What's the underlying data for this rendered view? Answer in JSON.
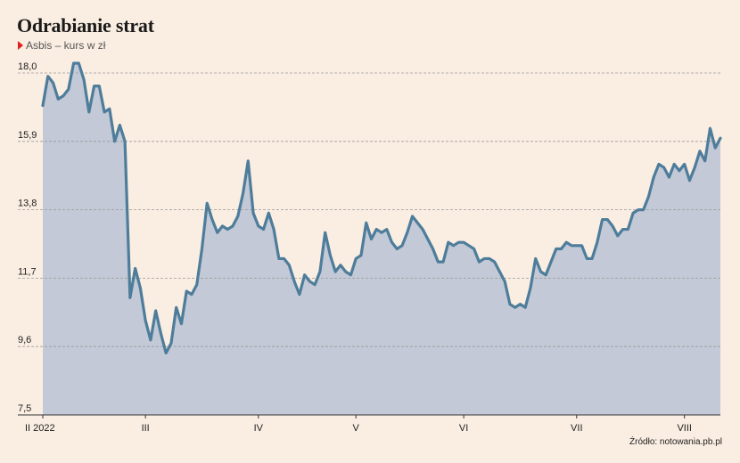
{
  "header": {
    "title": "Odrabianie strat",
    "subtitle": "Asbis – kurs w zł"
  },
  "footer": {
    "source": "Źródło: notowania.pb.pl"
  },
  "colors": {
    "background": "#faeee2",
    "line": "#4e7d9b",
    "area": "#c3c9d6",
    "grid": "#9a9a9a",
    "marker": "#e02020"
  },
  "chart_data": {
    "type": "area",
    "title": "Odrabianie strat",
    "subtitle": "Asbis – kurs w zł",
    "xlabel": "",
    "ylabel": "",
    "ylim": [
      7.5,
      18.0
    ],
    "yticks": [
      7.5,
      9.6,
      11.7,
      13.8,
      15.9,
      18.0
    ],
    "ytick_labels": [
      "7,5",
      "9,6",
      "11,7",
      "13,8",
      "15,9",
      "18,0"
    ],
    "x_tick_labels": [
      {
        "label": "II 2022",
        "index": 0
      },
      {
        "label": "III",
        "index": 20
      },
      {
        "label": "IV",
        "index": 42
      },
      {
        "label": "V",
        "index": 61
      },
      {
        "label": "VI",
        "index": 82
      },
      {
        "label": "VII",
        "index": 104
      },
      {
        "label": "VIII",
        "index": 125
      }
    ],
    "grid": true,
    "values": [
      17.0,
      17.9,
      17.7,
      17.2,
      17.3,
      17.5,
      18.3,
      18.3,
      17.8,
      16.8,
      17.6,
      17.6,
      16.8,
      16.9,
      15.9,
      16.4,
      15.9,
      11.1,
      12.0,
      11.4,
      10.4,
      9.8,
      10.7,
      10.0,
      9.4,
      9.7,
      10.8,
      10.3,
      11.3,
      11.2,
      11.5,
      12.6,
      14.0,
      13.5,
      13.1,
      13.3,
      13.2,
      13.3,
      13.6,
      14.3,
      15.3,
      13.7,
      13.3,
      13.2,
      13.7,
      13.2,
      12.3,
      12.3,
      12.1,
      11.6,
      11.2,
      11.8,
      11.6,
      11.5,
      11.9,
      13.1,
      12.4,
      11.9,
      12.1,
      11.9,
      11.8,
      12.3,
      12.4,
      13.4,
      12.9,
      13.2,
      13.1,
      13.2,
      12.8,
      12.6,
      12.7,
      13.1,
      13.6,
      13.4,
      13.2,
      12.9,
      12.6,
      12.2,
      12.2,
      12.8,
      12.7,
      12.8,
      12.8,
      12.7,
      12.6,
      12.2,
      12.3,
      12.3,
      12.2,
      11.9,
      11.6,
      10.9,
      10.8,
      10.9,
      10.8,
      11.4,
      12.3,
      11.9,
      11.8,
      12.2,
      12.6,
      12.6,
      12.8,
      12.7,
      12.7,
      12.7,
      12.3,
      12.3,
      12.8,
      13.5,
      13.5,
      13.3,
      13.0,
      13.2,
      13.2,
      13.7,
      13.8,
      13.8,
      14.2,
      14.8,
      15.2,
      15.1,
      14.8,
      15.2,
      15.0,
      15.2,
      14.7,
      15.1,
      15.6,
      15.3,
      16.3,
      15.7,
      16.0
    ]
  }
}
